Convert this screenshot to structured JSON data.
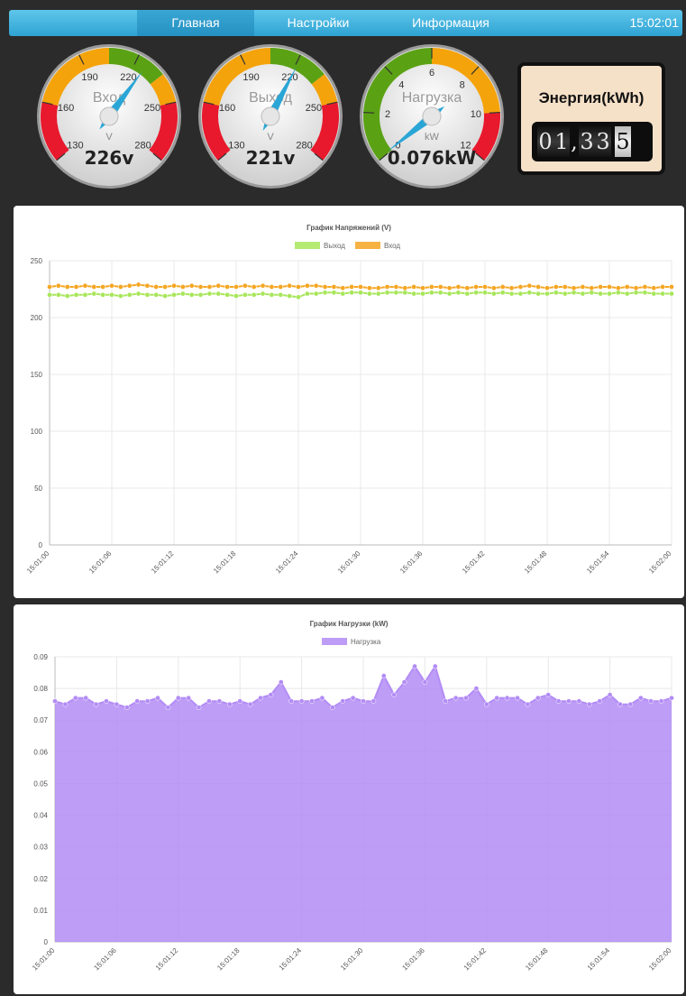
{
  "nav": {
    "home": "Главная",
    "settings": "Настройки",
    "info": "Информация",
    "clock": "15:02:01"
  },
  "gauges": [
    {
      "label": "Вход",
      "unit": "V",
      "ticks": [
        "130",
        "160",
        "190",
        "220",
        "250",
        "280"
      ],
      "min": 130,
      "max": 280,
      "value": 226,
      "readout": "226v"
    },
    {
      "label": "Выход",
      "unit": "V",
      "ticks": [
        "130",
        "160",
        "190",
        "220",
        "250",
        "280"
      ],
      "min": 130,
      "max": 280,
      "value": 221,
      "readout": "221v"
    },
    {
      "label": "Нагрузка",
      "unit": "kW",
      "ticks": [
        "0",
        "2",
        "4",
        "6",
        "8",
        "10",
        "12"
      ],
      "min": 0,
      "max": 12,
      "value": 0.076,
      "readout": "0.076kW"
    }
  ],
  "energy": {
    "title": "Энергия(kWh)",
    "digits": [
      "0",
      "1",
      ",",
      "3",
      "3",
      "5"
    ]
  },
  "chart_data": [
    {
      "type": "line",
      "title": "График Напряжений (V)",
      "ylim": [
        0,
        250
      ],
      "yticks": [
        0,
        50,
        100,
        150,
        200,
        250
      ],
      "xticks": [
        "15:01:00",
        "15:01:06",
        "15:01:12",
        "15:01:18",
        "15:01:24",
        "15:01:30",
        "15:01:36",
        "15:01:42",
        "15:01:48",
        "15:01:54",
        "15:02:00"
      ],
      "grid": true,
      "legend": "top",
      "series": [
        {
          "name": "Выход",
          "color": "#a8e65a",
          "values": [
            220,
            220,
            219,
            220,
            220,
            221,
            220,
            220,
            219,
            220,
            221,
            220,
            220,
            219,
            220,
            221,
            220,
            220,
            221,
            221,
            220,
            219,
            220,
            220,
            221,
            220,
            220,
            219,
            218,
            221,
            221,
            222,
            222,
            221,
            222,
            222,
            221,
            221,
            222,
            222,
            222,
            221,
            221,
            222,
            222,
            221,
            222,
            221,
            222,
            222,
            221,
            222,
            221,
            221,
            222,
            221,
            221,
            222,
            221,
            222,
            221,
            222,
            221,
            221,
            222,
            221,
            222,
            222,
            221,
            221,
            221
          ]
        },
        {
          "name": "Вход",
          "color": "#f5a623",
          "values": [
            227,
            228,
            227,
            227,
            228,
            227,
            227,
            228,
            227,
            228,
            229,
            228,
            227,
            227,
            228,
            227,
            228,
            227,
            227,
            228,
            227,
            227,
            228,
            227,
            228,
            227,
            227,
            228,
            227,
            228,
            228,
            227,
            227,
            226,
            227,
            227,
            226,
            226,
            227,
            227,
            226,
            227,
            226,
            227,
            227,
            226,
            227,
            226,
            227,
            227,
            226,
            227,
            226,
            227,
            228,
            227,
            226,
            227,
            227,
            226,
            227,
            226,
            227,
            227,
            226,
            227,
            226,
            227,
            226,
            227,
            227
          ]
        }
      ]
    },
    {
      "type": "area",
      "title": "График Нагрузки (kW)",
      "ylim": [
        0,
        0.09
      ],
      "yticks": [
        "0",
        "0.01",
        "0.02",
        "0.03",
        "0.04",
        "0.05",
        "0.06",
        "0.07",
        "0.08",
        "0.09"
      ],
      "xticks": [
        "15:01:00",
        "15:01:06",
        "15:01:12",
        "15:01:18",
        "15:01:24",
        "15:01:30",
        "15:01:36",
        "15:01:42",
        "15:01:48",
        "15:01:54",
        "15:02:00"
      ],
      "grid": true,
      "legend": "top",
      "series": [
        {
          "name": "Нагрузка",
          "color": "#b38cf5",
          "values": [
            0.076,
            0.075,
            0.077,
            0.077,
            0.075,
            0.076,
            0.075,
            0.074,
            0.076,
            0.076,
            0.077,
            0.074,
            0.077,
            0.077,
            0.074,
            0.076,
            0.076,
            0.075,
            0.076,
            0.075,
            0.077,
            0.078,
            0.082,
            0.076,
            0.076,
            0.076,
            0.077,
            0.074,
            0.076,
            0.077,
            0.076,
            0.076,
            0.084,
            0.078,
            0.082,
            0.087,
            0.082,
            0.087,
            0.076,
            0.077,
            0.077,
            0.08,
            0.075,
            0.077,
            0.077,
            0.077,
            0.075,
            0.077,
            0.078,
            0.076,
            0.076,
            0.076,
            0.075,
            0.076,
            0.078,
            0.075,
            0.075,
            0.077,
            0.076,
            0.076,
            0.077
          ]
        }
      ]
    }
  ]
}
